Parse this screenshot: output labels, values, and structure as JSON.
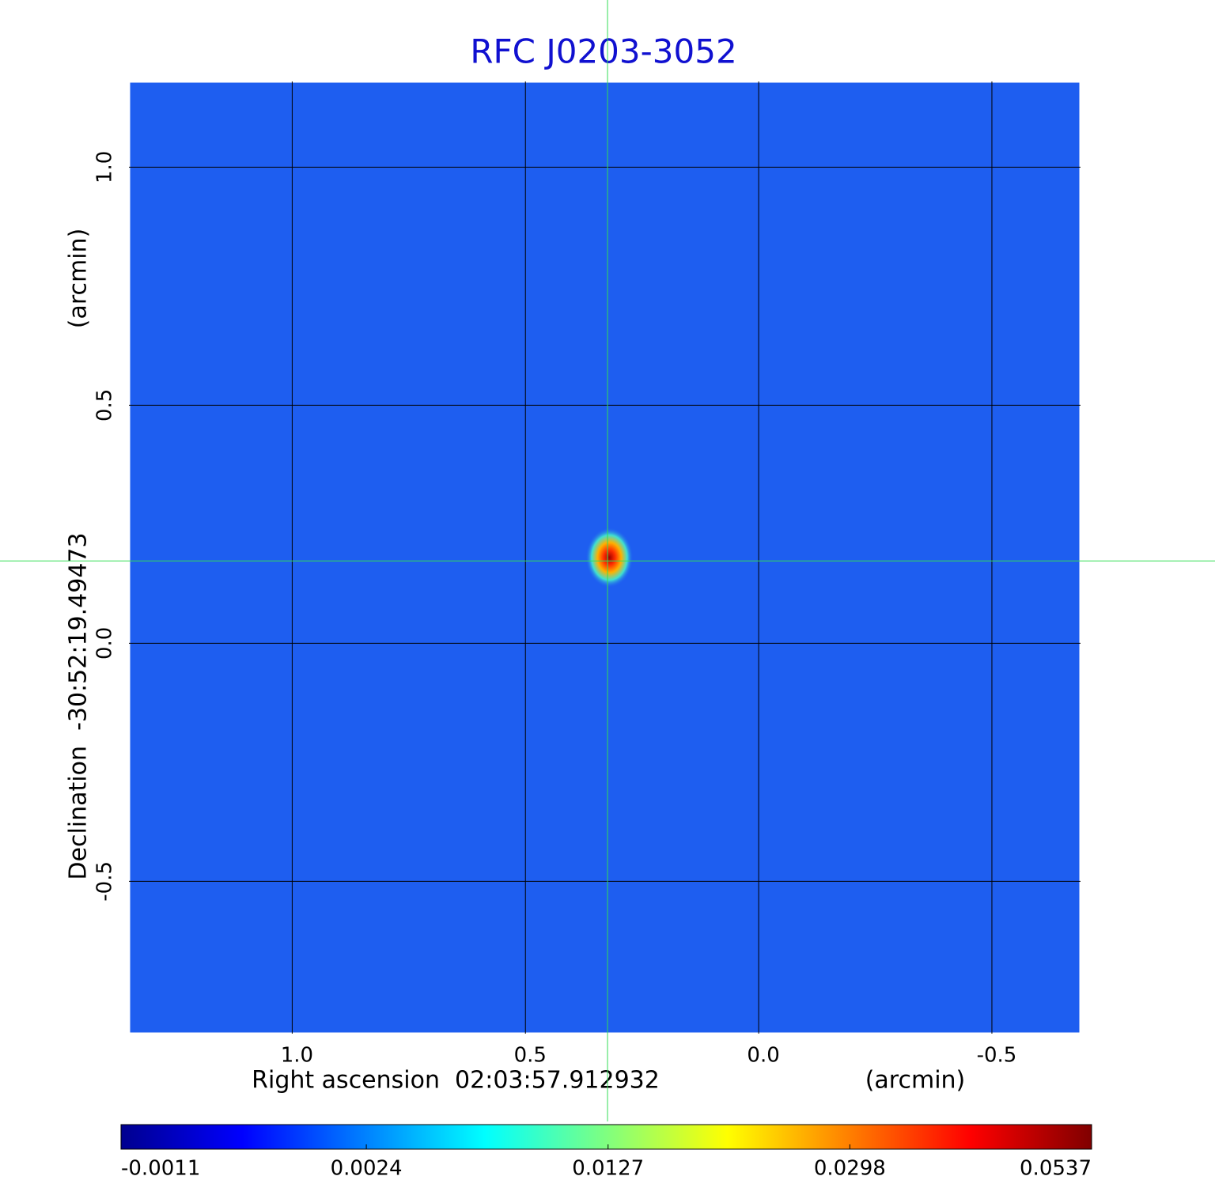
{
  "chart_data": {
    "type": "image",
    "title": "RFC J0203-3052",
    "xlabel": "Right ascension  02:03:57.912932",
    "xunit": "(arcmin)",
    "ylabel": "Declination  -30:52:19.49473",
    "yunit": "(arcmin)",
    "xlim": [
      1.35,
      -0.69
    ],
    "ylim": [
      -0.82,
      1.18
    ],
    "xticks": [
      {
        "value": 1,
        "label": "1.0"
      },
      {
        "value": 0.5,
        "label": "0.5"
      },
      {
        "value": 0,
        "label": "0.0"
      },
      {
        "value": -0.5,
        "label": "-0.5"
      }
    ],
    "yticks": [
      {
        "value": 1,
        "label": "1.0"
      },
      {
        "value": 0.5,
        "label": "0.5"
      },
      {
        "value": 0,
        "label": "0.0"
      },
      {
        "value": -0.5,
        "label": "-0.5"
      }
    ],
    "grid": true,
    "colormap": "jet",
    "colorbar_scale": "sqrt",
    "clim": [
      -0.0011,
      0.0537
    ],
    "colorbar_ticks": [
      -0.0011,
      0.0024,
      0.0127,
      0.0298,
      0.0537
    ],
    "source": {
      "x": 0.32,
      "y": 0.18,
      "peak": 0.0537
    },
    "crosshair": {
      "x": 0.324,
      "y": 0.173,
      "color": "#33dd55"
    }
  }
}
